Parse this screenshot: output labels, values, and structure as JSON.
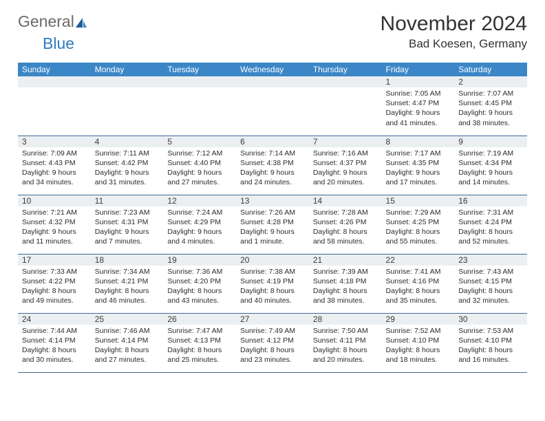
{
  "logo": {
    "text1": "General",
    "text2": "Blue"
  },
  "title": "November 2024",
  "location": "Bad Koesen, Germany",
  "colors": {
    "header_bg": "#3b86c7",
    "header_fg": "#ffffff",
    "daynum_bg": "#eceff1",
    "border": "#3b6a97",
    "logo_blue": "#2f7bbf",
    "logo_gray": "#6a6a6a",
    "text": "#2b2b2b"
  },
  "weekdays": [
    "Sunday",
    "Monday",
    "Tuesday",
    "Wednesday",
    "Thursday",
    "Friday",
    "Saturday"
  ],
  "weeks": [
    [
      null,
      null,
      null,
      null,
      null,
      {
        "n": "1",
        "sr": "Sunrise: 7:05 AM",
        "ss": "Sunset: 4:47 PM",
        "dl": "Daylight: 9 hours and 41 minutes."
      },
      {
        "n": "2",
        "sr": "Sunrise: 7:07 AM",
        "ss": "Sunset: 4:45 PM",
        "dl": "Daylight: 9 hours and 38 minutes."
      }
    ],
    [
      {
        "n": "3",
        "sr": "Sunrise: 7:09 AM",
        "ss": "Sunset: 4:43 PM",
        "dl": "Daylight: 9 hours and 34 minutes."
      },
      {
        "n": "4",
        "sr": "Sunrise: 7:11 AM",
        "ss": "Sunset: 4:42 PM",
        "dl": "Daylight: 9 hours and 31 minutes."
      },
      {
        "n": "5",
        "sr": "Sunrise: 7:12 AM",
        "ss": "Sunset: 4:40 PM",
        "dl": "Daylight: 9 hours and 27 minutes."
      },
      {
        "n": "6",
        "sr": "Sunrise: 7:14 AM",
        "ss": "Sunset: 4:38 PM",
        "dl": "Daylight: 9 hours and 24 minutes."
      },
      {
        "n": "7",
        "sr": "Sunrise: 7:16 AM",
        "ss": "Sunset: 4:37 PM",
        "dl": "Daylight: 9 hours and 20 minutes."
      },
      {
        "n": "8",
        "sr": "Sunrise: 7:17 AM",
        "ss": "Sunset: 4:35 PM",
        "dl": "Daylight: 9 hours and 17 minutes."
      },
      {
        "n": "9",
        "sr": "Sunrise: 7:19 AM",
        "ss": "Sunset: 4:34 PM",
        "dl": "Daylight: 9 hours and 14 minutes."
      }
    ],
    [
      {
        "n": "10",
        "sr": "Sunrise: 7:21 AM",
        "ss": "Sunset: 4:32 PM",
        "dl": "Daylight: 9 hours and 11 minutes."
      },
      {
        "n": "11",
        "sr": "Sunrise: 7:23 AM",
        "ss": "Sunset: 4:31 PM",
        "dl": "Daylight: 9 hours and 7 minutes."
      },
      {
        "n": "12",
        "sr": "Sunrise: 7:24 AM",
        "ss": "Sunset: 4:29 PM",
        "dl": "Daylight: 9 hours and 4 minutes."
      },
      {
        "n": "13",
        "sr": "Sunrise: 7:26 AM",
        "ss": "Sunset: 4:28 PM",
        "dl": "Daylight: 9 hours and 1 minute."
      },
      {
        "n": "14",
        "sr": "Sunrise: 7:28 AM",
        "ss": "Sunset: 4:26 PM",
        "dl": "Daylight: 8 hours and 58 minutes."
      },
      {
        "n": "15",
        "sr": "Sunrise: 7:29 AM",
        "ss": "Sunset: 4:25 PM",
        "dl": "Daylight: 8 hours and 55 minutes."
      },
      {
        "n": "16",
        "sr": "Sunrise: 7:31 AM",
        "ss": "Sunset: 4:24 PM",
        "dl": "Daylight: 8 hours and 52 minutes."
      }
    ],
    [
      {
        "n": "17",
        "sr": "Sunrise: 7:33 AM",
        "ss": "Sunset: 4:22 PM",
        "dl": "Daylight: 8 hours and 49 minutes."
      },
      {
        "n": "18",
        "sr": "Sunrise: 7:34 AM",
        "ss": "Sunset: 4:21 PM",
        "dl": "Daylight: 8 hours and 46 minutes."
      },
      {
        "n": "19",
        "sr": "Sunrise: 7:36 AM",
        "ss": "Sunset: 4:20 PM",
        "dl": "Daylight: 8 hours and 43 minutes."
      },
      {
        "n": "20",
        "sr": "Sunrise: 7:38 AM",
        "ss": "Sunset: 4:19 PM",
        "dl": "Daylight: 8 hours and 40 minutes."
      },
      {
        "n": "21",
        "sr": "Sunrise: 7:39 AM",
        "ss": "Sunset: 4:18 PM",
        "dl": "Daylight: 8 hours and 38 minutes."
      },
      {
        "n": "22",
        "sr": "Sunrise: 7:41 AM",
        "ss": "Sunset: 4:16 PM",
        "dl": "Daylight: 8 hours and 35 minutes."
      },
      {
        "n": "23",
        "sr": "Sunrise: 7:43 AM",
        "ss": "Sunset: 4:15 PM",
        "dl": "Daylight: 8 hours and 32 minutes."
      }
    ],
    [
      {
        "n": "24",
        "sr": "Sunrise: 7:44 AM",
        "ss": "Sunset: 4:14 PM",
        "dl": "Daylight: 8 hours and 30 minutes."
      },
      {
        "n": "25",
        "sr": "Sunrise: 7:46 AM",
        "ss": "Sunset: 4:14 PM",
        "dl": "Daylight: 8 hours and 27 minutes."
      },
      {
        "n": "26",
        "sr": "Sunrise: 7:47 AM",
        "ss": "Sunset: 4:13 PM",
        "dl": "Daylight: 8 hours and 25 minutes."
      },
      {
        "n": "27",
        "sr": "Sunrise: 7:49 AM",
        "ss": "Sunset: 4:12 PM",
        "dl": "Daylight: 8 hours and 23 minutes."
      },
      {
        "n": "28",
        "sr": "Sunrise: 7:50 AM",
        "ss": "Sunset: 4:11 PM",
        "dl": "Daylight: 8 hours and 20 minutes."
      },
      {
        "n": "29",
        "sr": "Sunrise: 7:52 AM",
        "ss": "Sunset: 4:10 PM",
        "dl": "Daylight: 8 hours and 18 minutes."
      },
      {
        "n": "30",
        "sr": "Sunrise: 7:53 AM",
        "ss": "Sunset: 4:10 PM",
        "dl": "Daylight: 8 hours and 16 minutes."
      }
    ]
  ]
}
